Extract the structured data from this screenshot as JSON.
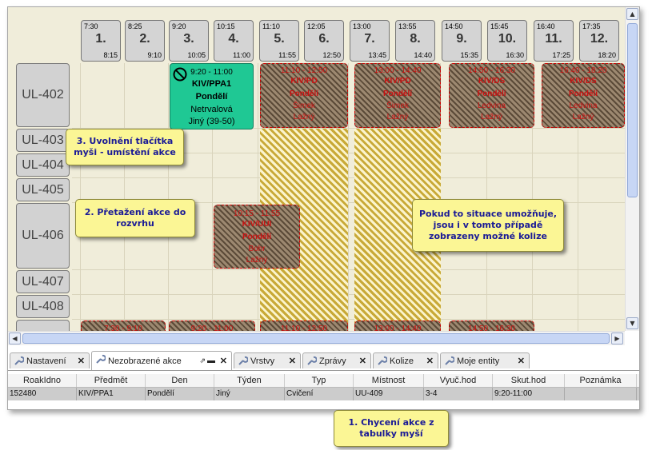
{
  "columns": [
    {
      "start": "7:30",
      "num": "1.",
      "end": "8:15"
    },
    {
      "start": "8:25",
      "num": "2.",
      "end": "9:10"
    },
    {
      "start": "9:20",
      "num": "3.",
      "end": "10:05"
    },
    {
      "start": "10:15",
      "num": "4.",
      "end": "11:00"
    },
    {
      "start": "11:10",
      "num": "5.",
      "end": "11:55"
    },
    {
      "start": "12:05",
      "num": "6.",
      "end": "12:50"
    },
    {
      "start": "13:00",
      "num": "7.",
      "end": "13:45"
    },
    {
      "start": "13:55",
      "num": "8.",
      "end": "14:40"
    },
    {
      "start": "14:50",
      "num": "9.",
      "end": "15:35"
    },
    {
      "start": "15:45",
      "num": "10.",
      "end": "16:30"
    },
    {
      "start": "16:40",
      "num": "11.",
      "end": "17:25"
    },
    {
      "start": "17:35",
      "num": "12.",
      "end": "18:20"
    }
  ],
  "rooms": [
    "UL-402",
    "UL-403",
    "UL-404",
    "UL-405",
    "UL-406",
    "UL-407",
    "UL-408"
  ],
  "placed_event": {
    "time": "9:20 - 11:00",
    "code": "KIV/PPA1",
    "day": "Pondělí",
    "teacher": "Netrvalová",
    "week": "Jiný (39-50)"
  },
  "conflict_events": [
    {
      "time": "11:10 - 12:50",
      "code": "KIV/PD",
      "day": "Pondělí",
      "teacher": "Šimek",
      "week": "Lažný"
    },
    {
      "time": "13:00 - 14:40",
      "code": "KIV/PD",
      "day": "Pondělí",
      "teacher": "Šimek",
      "week": "Lažný"
    },
    {
      "time": "14:50 - 16:30",
      "code": "KIV/DS",
      "day": "Pondělí",
      "teacher": "Ledvina",
      "week": "Lažný"
    },
    {
      "time": "16:40 - 18:20",
      "code": "KIV/DS",
      "day": "Pondělí",
      "teacher": "Ledvina",
      "week": "Lažný"
    },
    {
      "time": "10:15 - 11:55",
      "code": "KIV/UUI",
      "day": "Pondělí",
      "teacher": "Bohr",
      "week": "Lažný"
    }
  ],
  "bottom_events": [
    "7:30 - 9:10",
    "9:20 - 11:00",
    "11:10 - 12:50",
    "13:00 - 14:40",
    "14:50 - 16:30"
  ],
  "callouts": {
    "release": "3. Uvolnění tlačítka myši - umístění akce",
    "drag": "2. Přetažení akce do rozvrhu",
    "conflicts": "Pokud to situace umožňuje, jsou i v tomto případě zobrazeny možné kolize",
    "grab": "1. Chycení akce z tabulky myší"
  },
  "tabs": [
    {
      "label": "Nastavení",
      "icon": "wrench-icon"
    },
    {
      "label": "Nezobrazené akce",
      "icon": "wrench-icon"
    },
    {
      "label": "Vrstvy",
      "icon": "wrench-icon"
    },
    {
      "label": "Zprávy",
      "icon": "wrench-icon"
    },
    {
      "label": "Kolize",
      "icon": "wrench-icon"
    },
    {
      "label": "Moje entity",
      "icon": "wrench-icon"
    }
  ],
  "table": {
    "headers": [
      "RoakIdno",
      "Předmět",
      "Den",
      "Týden",
      "Typ",
      "Místnost",
      "Vyuč.hod",
      "Skut.hod",
      "Poznámka"
    ],
    "row": [
      "152480",
      "KIV/PPA1",
      "Pondělí",
      "Jiný",
      "Cvičení",
      "UU-409",
      "3-4",
      "9:20-11:00",
      ""
    ]
  },
  "colors": {
    "placed": "#1fc894",
    "callout": "#fbf695",
    "conflict_stripe": "#c8a937"
  }
}
